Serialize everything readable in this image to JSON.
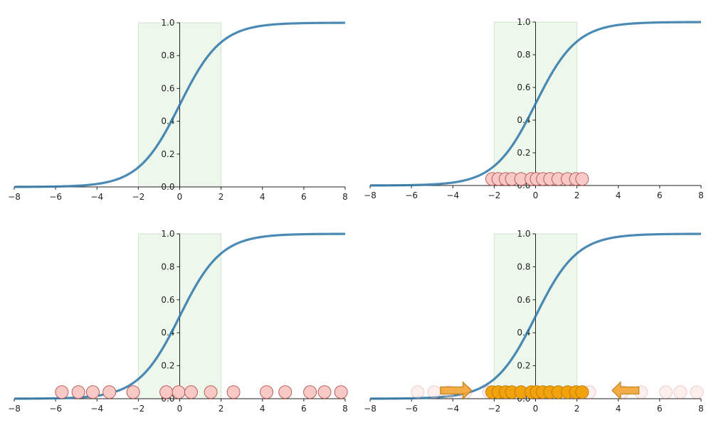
{
  "colors": {
    "curve": "#2a76a8",
    "band_fill": "#eef7ec",
    "band_edge": "#cfe6c9",
    "point_fill": "#f8c9c6",
    "point_edge": "#b4504c",
    "moved_fill": "#f2a20c",
    "moved_edge": "#b87a06",
    "arrow_fill": "#f2a433",
    "axis": "#222222"
  },
  "chart_data": [
    {
      "id": "top-left",
      "type": "line",
      "series": [
        {
          "function": "sigmoid",
          "x_range": [
            -8,
            8
          ]
        }
      ],
      "band": [
        -2,
        2
      ],
      "xlim": [
        -8,
        8
      ],
      "ylim": [
        0,
        1
      ],
      "xticks": [
        "−8",
        "−6",
        "−4",
        "−2",
        "0",
        "2",
        "4",
        "6",
        "8"
      ],
      "yticks": [
        "0.0",
        "0.2",
        "0.4",
        "0.6",
        "0.8",
        "1.0"
      ],
      "points": [],
      "faded_points": [],
      "arrows": []
    },
    {
      "id": "top-right",
      "type": "scatter",
      "series": [
        {
          "function": "sigmoid",
          "x_range": [
            -8,
            8
          ]
        }
      ],
      "band": [
        -2,
        2
      ],
      "xlim": [
        -8,
        8
      ],
      "ylim": [
        0,
        1
      ],
      "xticks": [
        "−8",
        "−6",
        "−4",
        "−2",
        "0",
        "2",
        "4",
        "6",
        "8"
      ],
      "yticks": [
        "0.0",
        "0.2",
        "0.4",
        "0.6",
        "0.8",
        "1.0"
      ],
      "points": [
        -2.1,
        -1.8,
        -1.45,
        -1.15,
        -0.7,
        -0.2,
        0.05,
        0.35,
        0.7,
        1.1,
        1.55,
        1.95,
        2.25
      ],
      "point_y": 0.04,
      "point_style": "pink",
      "faded_points": [],
      "arrows": []
    },
    {
      "id": "bottom-left",
      "type": "scatter",
      "series": [
        {
          "function": "sigmoid",
          "x_range": [
            -8,
            8
          ]
        }
      ],
      "band": [
        -2,
        2
      ],
      "xlim": [
        -8,
        8
      ],
      "ylim": [
        0,
        1
      ],
      "xticks": [
        "−8",
        "−6",
        "−4",
        "−2",
        "0",
        "2",
        "4",
        "6",
        "8"
      ],
      "yticks": [
        "0.0",
        "0.2",
        "0.4",
        "0.6",
        "0.8",
        "1.0"
      ],
      "points": [
        -5.7,
        -4.9,
        -4.2,
        -3.4,
        -2.25,
        -0.65,
        -0.05,
        0.55,
        1.5,
        2.6,
        4.2,
        5.1,
        6.3,
        7.0,
        7.8
      ],
      "point_y": 0.04,
      "point_style": "pink",
      "faded_points": [],
      "arrows": []
    },
    {
      "id": "bottom-right",
      "type": "scatter",
      "series": [
        {
          "function": "sigmoid",
          "x_range": [
            -8,
            8
          ]
        }
      ],
      "band": [
        -2,
        2
      ],
      "xlim": [
        -8,
        8
      ],
      "ylim": [
        0,
        1
      ],
      "xticks": [
        "−8",
        "−6",
        "−4",
        "−2",
        "0",
        "2",
        "4",
        "6",
        "8"
      ],
      "yticks": [
        "0.0",
        "0.2",
        "0.4",
        "0.6",
        "0.8",
        "1.0"
      ],
      "faded_points": [
        -5.7,
        -4.9,
        -4.2,
        -3.4,
        -2.25,
        2.6,
        4.2,
        5.1,
        6.3,
        7.0,
        7.8
      ],
      "points": [
        -2.1,
        -1.8,
        -1.45,
        -1.15,
        -0.7,
        -0.2,
        0.05,
        0.35,
        0.7,
        1.1,
        1.55,
        1.95,
        2.25
      ],
      "point_y": 0.04,
      "point_style": "orange",
      "arrows": [
        {
          "from": -4.6,
          "to": -3.1,
          "y": 0.05
        },
        {
          "from": 5.0,
          "to": 3.7,
          "y": 0.05
        }
      ]
    }
  ]
}
